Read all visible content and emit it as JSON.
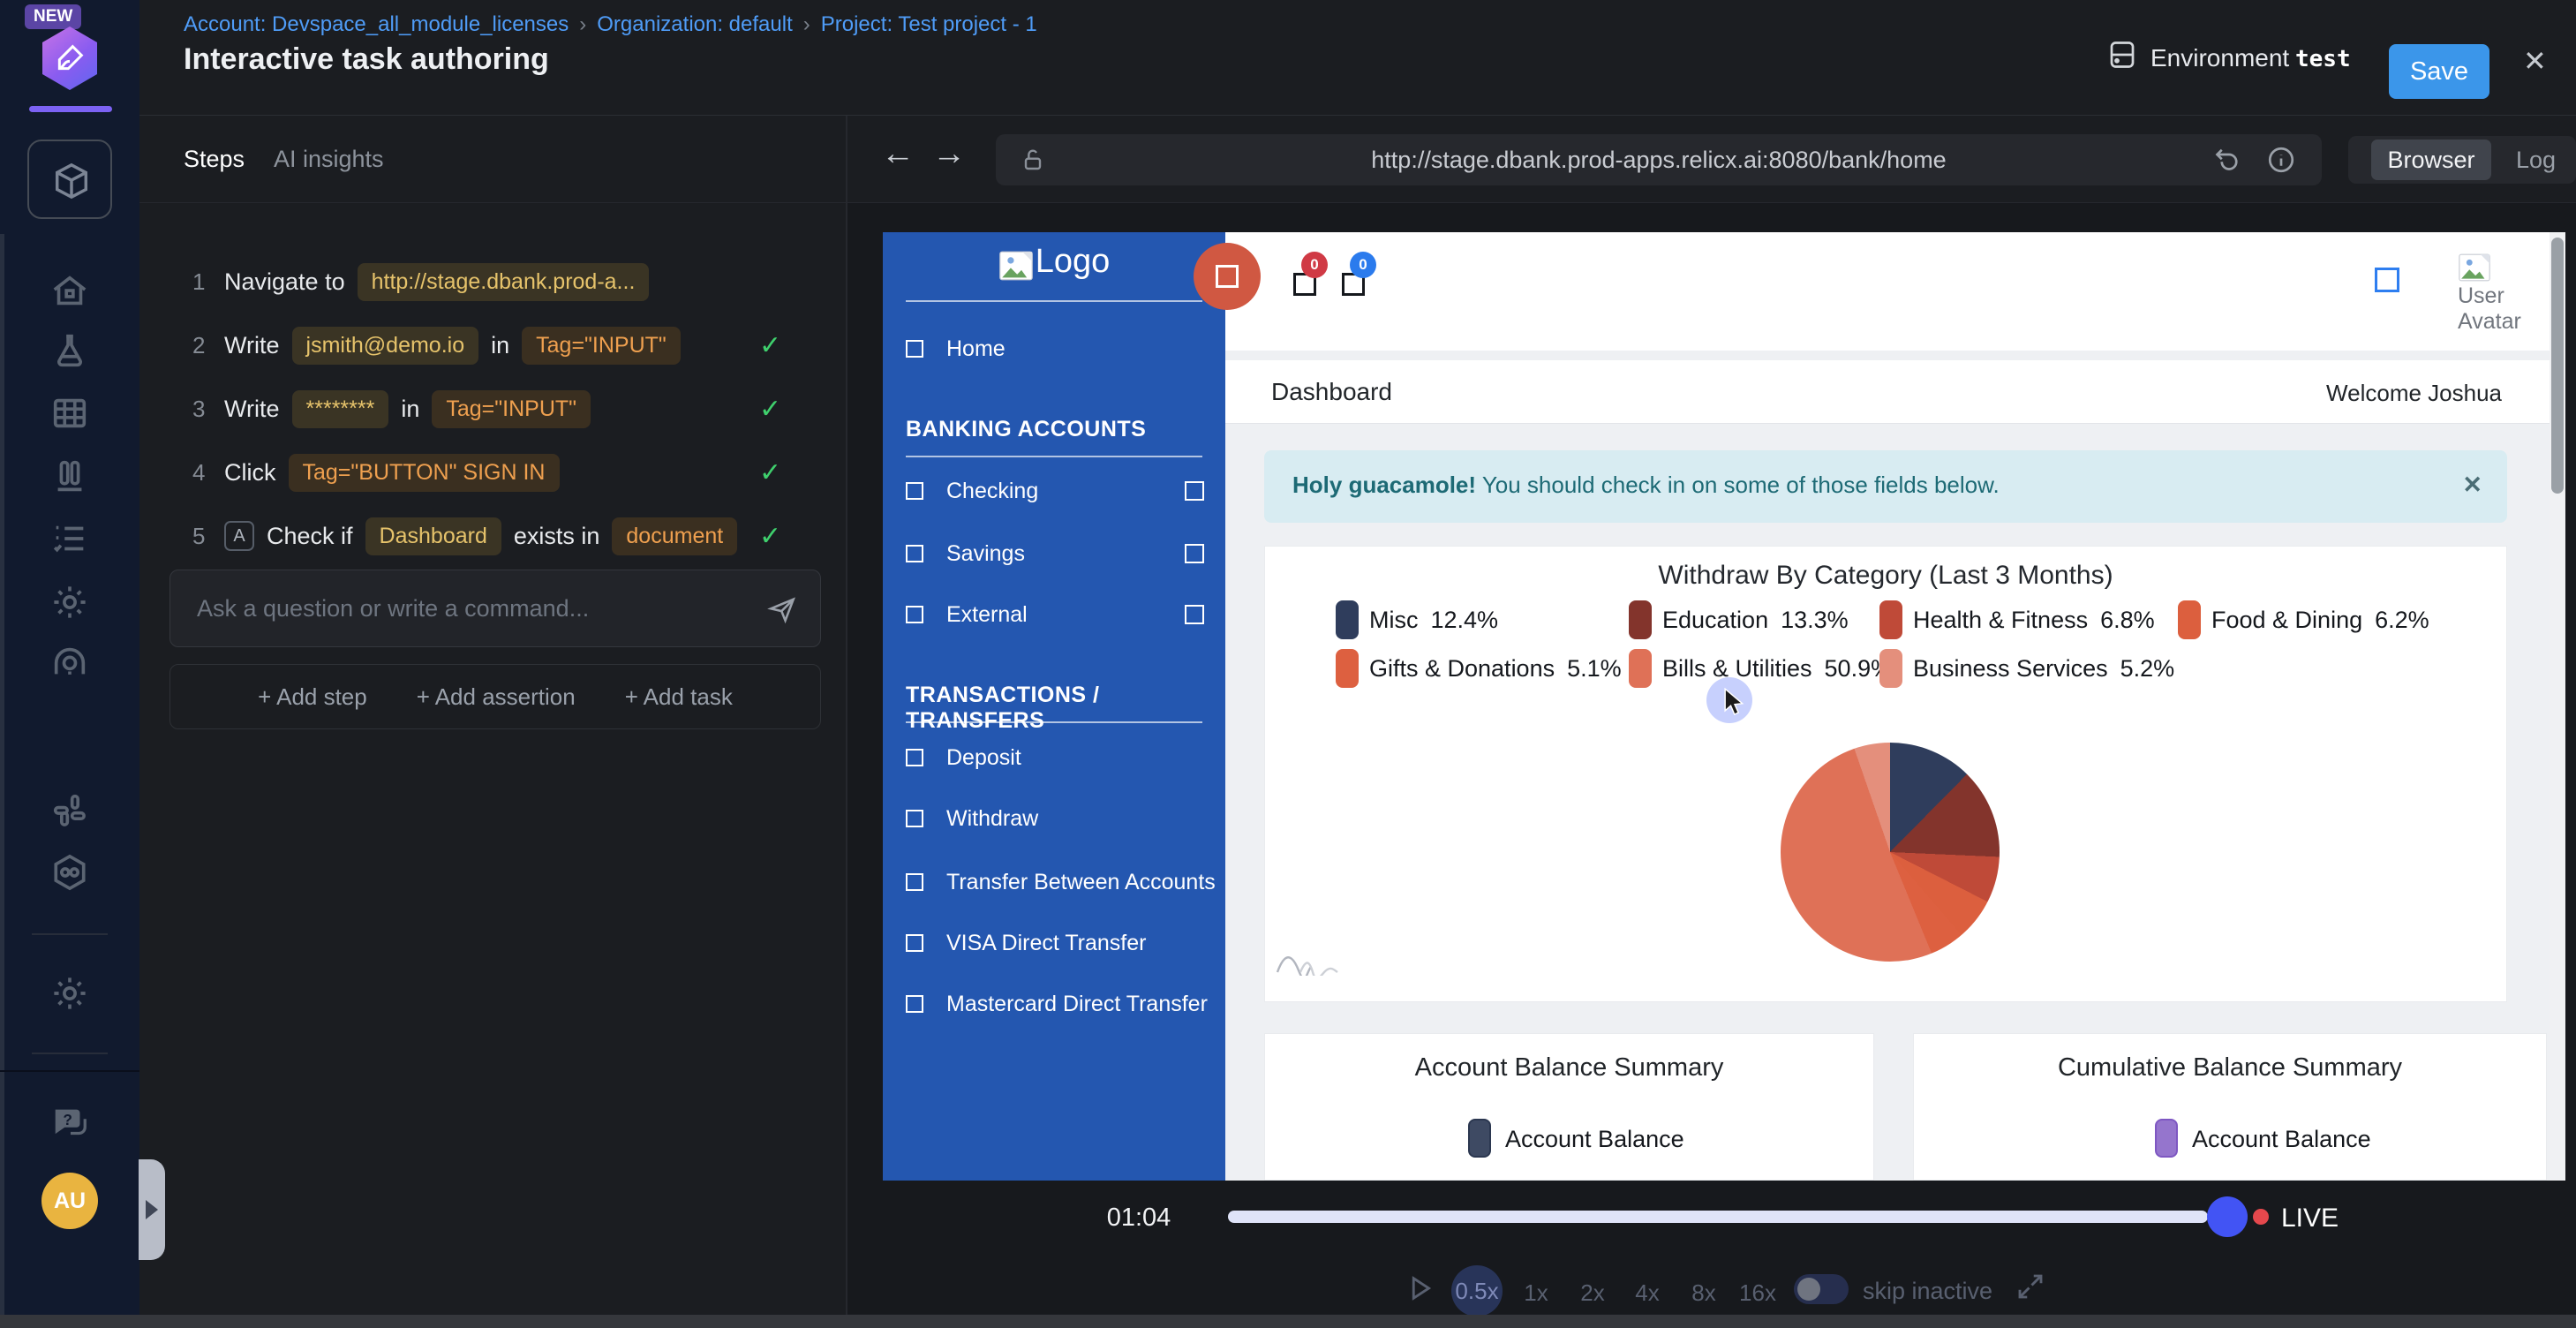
{
  "icons": {
    "check": "✓",
    "close": "✕",
    "sep": "›",
    "back": "←",
    "forward": "→"
  },
  "rail": {
    "badge": "NEW",
    "avatar_initials": "AU"
  },
  "header": {
    "breadcrumb": [
      "Account: Devspace_all_module_licenses",
      "Organization: default",
      "Project: Test project - 1"
    ],
    "title": "Interactive task authoring",
    "environment_label": "Environment",
    "environment_value": "test",
    "save_label": "Save"
  },
  "tabs": {
    "steps": "Steps",
    "ai_insights": "AI insights"
  },
  "steps": [
    {
      "num": "1",
      "check": false,
      "parts": [
        {
          "t": "text",
          "v": "Navigate to"
        },
        {
          "t": "chip-yellow",
          "v": "http://stage.dbank.prod-a..."
        }
      ]
    },
    {
      "num": "2",
      "check": true,
      "parts": [
        {
          "t": "text",
          "v": "Write"
        },
        {
          "t": "chip-yellow",
          "v": "jsmith@demo.io"
        },
        {
          "t": "text",
          "v": "in"
        },
        {
          "t": "chip-orange",
          "v": "Tag=\"INPUT\""
        }
      ]
    },
    {
      "num": "3",
      "check": true,
      "parts": [
        {
          "t": "text",
          "v": "Write"
        },
        {
          "t": "chip-yellow",
          "v": "********"
        },
        {
          "t": "text",
          "v": "in"
        },
        {
          "t": "chip-orange",
          "v": "Tag=\"INPUT\""
        }
      ]
    },
    {
      "num": "4",
      "check": true,
      "parts": [
        {
          "t": "text",
          "v": "Click"
        },
        {
          "t": "chip-orange",
          "v": "Tag=\"BUTTON\" SIGN IN"
        }
      ]
    },
    {
      "num": "5",
      "check": true,
      "badge": "A",
      "parts": [
        {
          "t": "text",
          "v": "Check if"
        },
        {
          "t": "chip-yellow",
          "v": "Dashboard"
        },
        {
          "t": "text",
          "v": "exists in"
        },
        {
          "t": "chip-orange",
          "v": "document"
        }
      ]
    }
  ],
  "composer": {
    "placeholder": "Ask a question or write a command...",
    "add_step": "+ Add step",
    "add_assertion": "+ Add assertion",
    "add_task": "+ Add task"
  },
  "browser": {
    "url": "http://stage.dbank.prod-apps.relicx.ai:8080/bank/home",
    "tab_browser": "Browser",
    "tab_log": "Log"
  },
  "bank": {
    "logo_text": "Logo",
    "sidebar": {
      "sections": [
        {
          "header": null,
          "items": [
            {
              "label": "Home",
              "right": false
            }
          ]
        },
        {
          "header": "BANKING ACCOUNTS",
          "items": [
            {
              "label": "Checking",
              "right": true
            },
            {
              "label": "Savings",
              "right": true
            },
            {
              "label": "External",
              "right": true
            }
          ]
        },
        {
          "header": "TRANSACTIONS / TRANSFERS",
          "items": [
            {
              "label": "Deposit",
              "right": false
            },
            {
              "label": "Withdraw",
              "right": false
            },
            {
              "label": "Transfer Between Accounts",
              "right": false
            },
            {
              "label": "VISA Direct Transfer",
              "right": false
            },
            {
              "label": "Mastercard Direct Transfer",
              "right": false
            }
          ]
        }
      ]
    },
    "badges": {
      "red": "0",
      "blue": "0"
    },
    "avatar_alt": "User Avatar",
    "page_title": "Dashboard",
    "welcome": "Welcome Joshua",
    "alert_bold": "Holy guacamole!",
    "alert_text": " You should check in on some of those fields below.",
    "cards": [
      {
        "title": "Account Balance Summary",
        "legend_label": "Account Balance",
        "color": "#3e4a63",
        "border": "#2b3750"
      },
      {
        "title": "Cumulative Balance Summary",
        "legend_label": "Account Balance",
        "color": "#9575cd",
        "border": "#7e57c2"
      }
    ]
  },
  "chart_data": {
    "type": "pie",
    "title": "Withdraw By Category (Last 3 Months)",
    "categories": [
      "Misc",
      "Education",
      "Health & Fitness",
      "Food & Dining",
      "Gifts & Donations",
      "Bills & Utilities",
      "Business Services"
    ],
    "values": [
      12.4,
      13.3,
      6.8,
      6.2,
      5.1,
      50.9,
      5.2
    ],
    "unit": "%",
    "colors": [
      "#2f3d5c",
      "#83342c",
      "#bf4a38",
      "#dc5f3e",
      "#dd6040",
      "#df7157",
      "#e48f7c"
    ],
    "legend_position": "top"
  },
  "playback": {
    "time": "01:04",
    "live": "LIVE",
    "speeds": [
      "0.5x",
      "1x",
      "2x",
      "4x",
      "8x",
      "16x"
    ],
    "active_speed": "0.5x",
    "skip_label": "skip inactive"
  }
}
